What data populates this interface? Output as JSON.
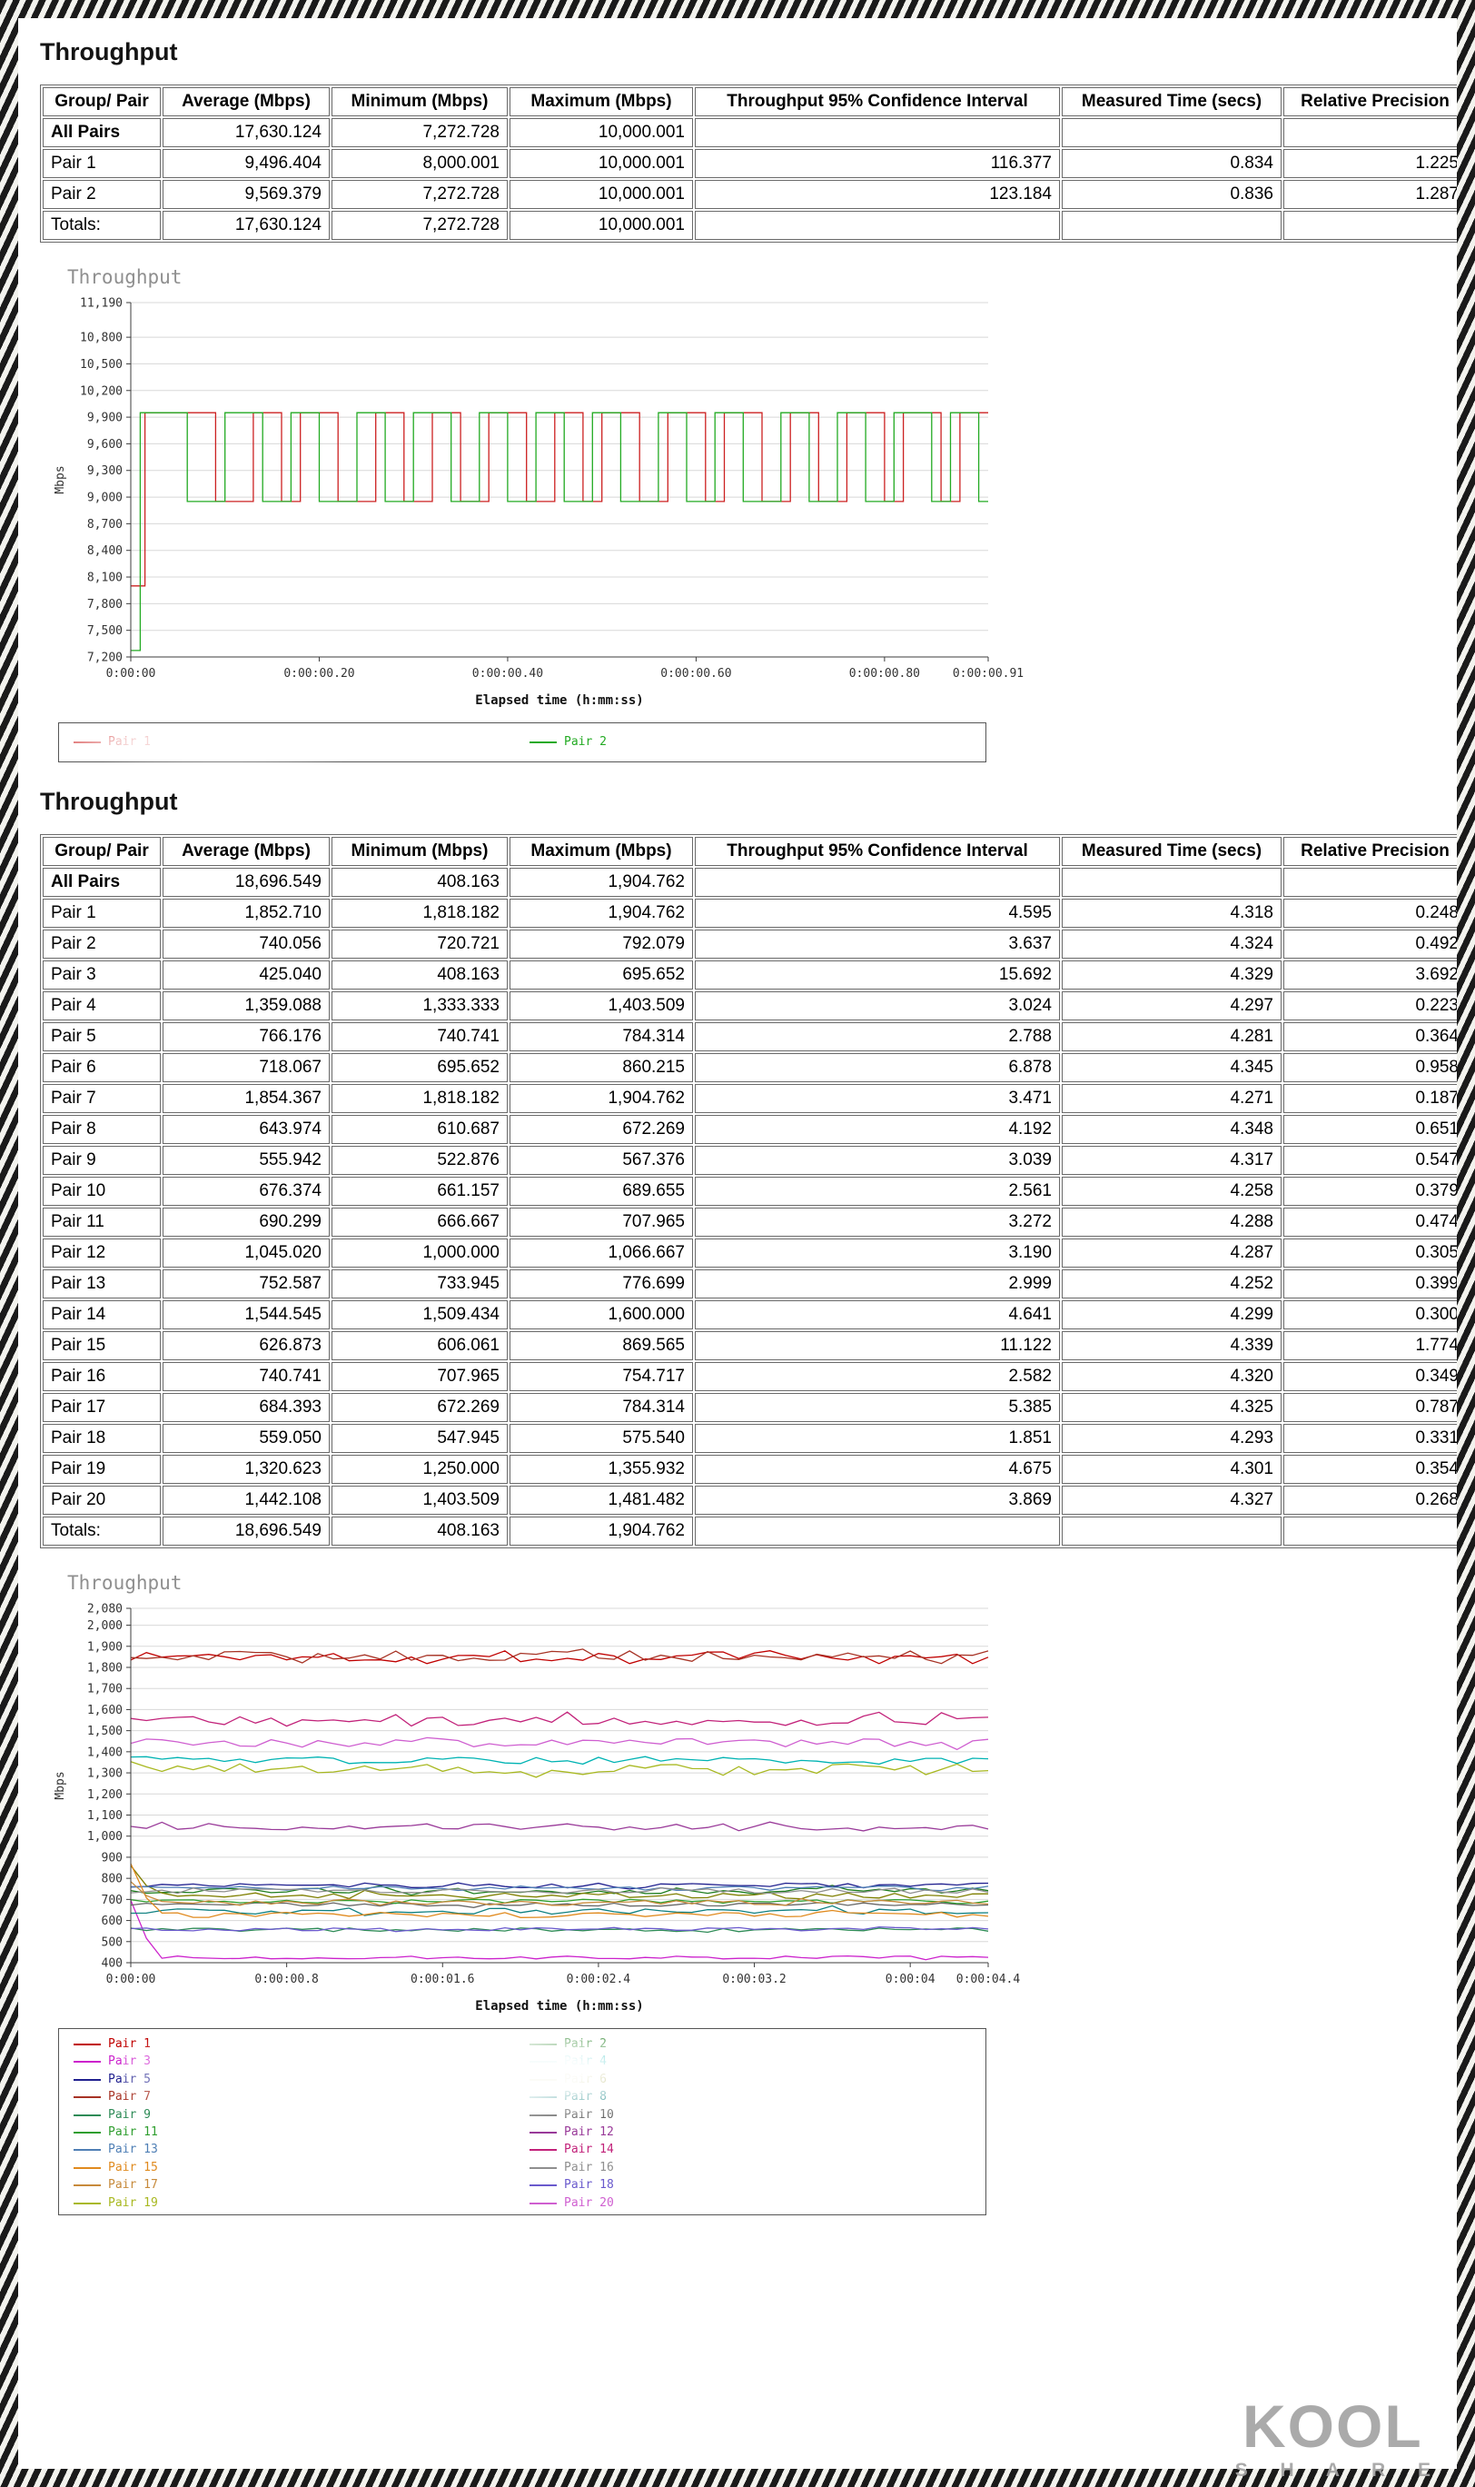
{
  "sections": {
    "title1": "Throughput",
    "title2": "Throughput"
  },
  "watermark": {
    "line1": "KOOL",
    "line2": "S H A R E"
  },
  "tables": {
    "table1": {
      "headers": [
        "Group/ Pair",
        "Average (Mbps)",
        "Minimum (Mbps)",
        "Maximum (Mbps)",
        "Throughput 95% Confidence Interval",
        "Measured Time (secs)",
        "Relative Precision"
      ],
      "rows": [
        {
          "label": "All Pairs",
          "bold": true,
          "cells": [
            "17,630.124",
            "7,272.728",
            "10,000.001",
            "",
            "",
            ""
          ]
        },
        {
          "label": "Pair 1",
          "bold": false,
          "cells": [
            "9,496.404",
            "8,000.001",
            "10,000.001",
            "116.377",
            "0.834",
            "1.225"
          ]
        },
        {
          "label": "Pair 2",
          "bold": false,
          "cells": [
            "9,569.379",
            "7,272.728",
            "10,000.001",
            "123.184",
            "0.836",
            "1.287"
          ]
        },
        {
          "label": "Totals:",
          "bold": false,
          "cells": [
            "17,630.124",
            "7,272.728",
            "10,000.001",
            "",
            "",
            ""
          ]
        }
      ]
    },
    "table2": {
      "headers": [
        "Group/ Pair",
        "Average (Mbps)",
        "Minimum (Mbps)",
        "Maximum (Mbps)",
        "Throughput 95% Confidence Interval",
        "Measured Time (secs)",
        "Relative Precision"
      ],
      "rows": [
        {
          "label": "All Pairs",
          "bold": true,
          "cells": [
            "18,696.549",
            "408.163",
            "1,904.762",
            "",
            "",
            ""
          ]
        },
        {
          "label": "Pair 1",
          "bold": false,
          "cells": [
            "1,852.710",
            "1,818.182",
            "1,904.762",
            "4.595",
            "4.318",
            "0.248"
          ]
        },
        {
          "label": "Pair 2",
          "bold": false,
          "cells": [
            "740.056",
            "720.721",
            "792.079",
            "3.637",
            "4.324",
            "0.492"
          ]
        },
        {
          "label": "Pair 3",
          "bold": false,
          "cells": [
            "425.040",
            "408.163",
            "695.652",
            "15.692",
            "4.329",
            "3.692"
          ]
        },
        {
          "label": "Pair 4",
          "bold": false,
          "cells": [
            "1,359.088",
            "1,333.333",
            "1,403.509",
            "3.024",
            "4.297",
            "0.223"
          ]
        },
        {
          "label": "Pair 5",
          "bold": false,
          "cells": [
            "766.176",
            "740.741",
            "784.314",
            "2.788",
            "4.281",
            "0.364"
          ]
        },
        {
          "label": "Pair 6",
          "bold": false,
          "cells": [
            "718.067",
            "695.652",
            "860.215",
            "6.878",
            "4.345",
            "0.958"
          ]
        },
        {
          "label": "Pair 7",
          "bold": false,
          "cells": [
            "1,854.367",
            "1,818.182",
            "1,904.762",
            "3.471",
            "4.271",
            "0.187"
          ]
        },
        {
          "label": "Pair 8",
          "bold": false,
          "cells": [
            "643.974",
            "610.687",
            "672.269",
            "4.192",
            "4.348",
            "0.651"
          ]
        },
        {
          "label": "Pair 9",
          "bold": false,
          "cells": [
            "555.942",
            "522.876",
            "567.376",
            "3.039",
            "4.317",
            "0.547"
          ]
        },
        {
          "label": "Pair 10",
          "bold": false,
          "cells": [
            "676.374",
            "661.157",
            "689.655",
            "2.561",
            "4.258",
            "0.379"
          ]
        },
        {
          "label": "Pair 11",
          "bold": false,
          "cells": [
            "690.299",
            "666.667",
            "707.965",
            "3.272",
            "4.288",
            "0.474"
          ]
        },
        {
          "label": "Pair 12",
          "bold": false,
          "cells": [
            "1,045.020",
            "1,000.000",
            "1,066.667",
            "3.190",
            "4.287",
            "0.305"
          ]
        },
        {
          "label": "Pair 13",
          "bold": false,
          "cells": [
            "752.587",
            "733.945",
            "776.699",
            "2.999",
            "4.252",
            "0.399"
          ]
        },
        {
          "label": "Pair 14",
          "bold": false,
          "cells": [
            "1,544.545",
            "1,509.434",
            "1,600.000",
            "4.641",
            "4.299",
            "0.300"
          ]
        },
        {
          "label": "Pair 15",
          "bold": false,
          "cells": [
            "626.873",
            "606.061",
            "869.565",
            "11.122",
            "4.339",
            "1.774"
          ]
        },
        {
          "label": "Pair 16",
          "bold": false,
          "cells": [
            "740.741",
            "707.965",
            "754.717",
            "2.582",
            "4.320",
            "0.349"
          ]
        },
        {
          "label": "Pair 17",
          "bold": false,
          "cells": [
            "684.393",
            "672.269",
            "784.314",
            "5.385",
            "4.325",
            "0.787"
          ]
        },
        {
          "label": "Pair 18",
          "bold": false,
          "cells": [
            "559.050",
            "547.945",
            "575.540",
            "1.851",
            "4.293",
            "0.331"
          ]
        },
        {
          "label": "Pair 19",
          "bold": false,
          "cells": [
            "1,320.623",
            "1,250.000",
            "1,355.932",
            "4.675",
            "4.301",
            "0.354"
          ]
        },
        {
          "label": "Pair 20",
          "bold": false,
          "cells": [
            "1,442.108",
            "1,403.509",
            "1,481.482",
            "3.869",
            "4.327",
            "0.268"
          ]
        },
        {
          "label": "Totals:",
          "bold": false,
          "cells": [
            "18,696.549",
            "408.163",
            "1,904.762",
            "",
            "",
            ""
          ]
        }
      ]
    }
  },
  "chart_data": [
    {
      "type": "line",
      "title": "Throughput",
      "ylabel": "Mbps",
      "xlabel": "Elapsed time (h:mm:ss)",
      "xlim": [
        0,
        0.91
      ],
      "ylim": [
        7200,
        11190
      ],
      "grid": "horizontal",
      "legend_position": "bottom-box",
      "step": true,
      "yticks": [
        {
          "v": 7200,
          "label": "7,200"
        },
        {
          "v": 7500,
          "label": "7,500"
        },
        {
          "v": 7800,
          "label": "7,800"
        },
        {
          "v": 8100,
          "label": "8,100"
        },
        {
          "v": 8400,
          "label": "8,400"
        },
        {
          "v": 8700,
          "label": "8,700"
        },
        {
          "v": 9000,
          "label": "9,000"
        },
        {
          "v": 9300,
          "label": "9,300"
        },
        {
          "v": 9600,
          "label": "9,600"
        },
        {
          "v": 9900,
          "label": "9,900"
        },
        {
          "v": 10200,
          "label": "10,200"
        },
        {
          "v": 10500,
          "label": "10,500"
        },
        {
          "v": 10800,
          "label": "10,800"
        },
        {
          "v": 11190,
          "label": "11,190"
        }
      ],
      "xticks": [
        {
          "v": 0,
          "label": "0:00:00"
        },
        {
          "v": 0.2,
          "label": "0:00:00.20"
        },
        {
          "v": 0.4,
          "label": "0:00:00.40"
        },
        {
          "v": 0.6,
          "label": "0:00:00.60"
        },
        {
          "v": 0.8,
          "label": "0:00:00.80"
        },
        {
          "v": 0.91,
          "label": "0:00:00.91"
        }
      ],
      "series": [
        {
          "name": "Pair 1",
          "color": "#cc2020",
          "points": [
            [
              0,
              8000
            ],
            [
              0.015,
              9950
            ],
            [
              0.09,
              8950
            ],
            [
              0.13,
              9950
            ],
            [
              0.16,
              8950
            ],
            [
              0.18,
              9950
            ],
            [
              0.22,
              8950
            ],
            [
              0.26,
              9950
            ],
            [
              0.29,
              8950
            ],
            [
              0.32,
              9950
            ],
            [
              0.35,
              8950
            ],
            [
              0.38,
              9950
            ],
            [
              0.42,
              8950
            ],
            [
              0.45,
              9950
            ],
            [
              0.48,
              8950
            ],
            [
              0.5,
              9950
            ],
            [
              0.54,
              8950
            ],
            [
              0.57,
              9950
            ],
            [
              0.61,
              8950
            ],
            [
              0.63,
              9950
            ],
            [
              0.67,
              8950
            ],
            [
              0.7,
              9950
            ],
            [
              0.73,
              8950
            ],
            [
              0.76,
              9950
            ],
            [
              0.8,
              8950
            ],
            [
              0.82,
              9950
            ],
            [
              0.86,
              8950
            ],
            [
              0.88,
              9950
            ],
            [
              0.91,
              9950
            ]
          ]
        },
        {
          "name": "Pair 2",
          "color": "#22aa22",
          "points": [
            [
              0,
              7272.7
            ],
            [
              0.01,
              9950
            ],
            [
              0.06,
              8950
            ],
            [
              0.1,
              9950
            ],
            [
              0.14,
              8950
            ],
            [
              0.17,
              9950
            ],
            [
              0.2,
              8950
            ],
            [
              0.24,
              9950
            ],
            [
              0.27,
              8950
            ],
            [
              0.3,
              9950
            ],
            [
              0.34,
              8950
            ],
            [
              0.37,
              9950
            ],
            [
              0.4,
              8950
            ],
            [
              0.43,
              9950
            ],
            [
              0.46,
              8950
            ],
            [
              0.49,
              9950
            ],
            [
              0.52,
              8950
            ],
            [
              0.56,
              9950
            ],
            [
              0.59,
              8950
            ],
            [
              0.62,
              9950
            ],
            [
              0.65,
              8950
            ],
            [
              0.69,
              9950
            ],
            [
              0.72,
              8950
            ],
            [
              0.75,
              9950
            ],
            [
              0.78,
              8950
            ],
            [
              0.81,
              9950
            ],
            [
              0.85,
              8950
            ],
            [
              0.87,
              9950
            ],
            [
              0.9,
              8950
            ],
            [
              0.91,
              8950
            ]
          ]
        }
      ]
    },
    {
      "type": "line",
      "title": "Throughput",
      "ylabel": "Mbps",
      "xlabel": "Elapsed time (h:mm:ss)",
      "xlim": [
        0,
        4.4
      ],
      "ylim": [
        400,
        2080
      ],
      "grid": "horizontal",
      "legend_position": "bottom-box-2col",
      "step": false,
      "yticks": [
        {
          "v": 400,
          "label": "400"
        },
        {
          "v": 500,
          "label": "500"
        },
        {
          "v": 600,
          "label": "600"
        },
        {
          "v": 700,
          "label": "700"
        },
        {
          "v": 800,
          "label": "800"
        },
        {
          "v": 900,
          "label": "900"
        },
        {
          "v": 1000,
          "label": "1,000"
        },
        {
          "v": 1100,
          "label": "1,100"
        },
        {
          "v": 1200,
          "label": "1,200"
        },
        {
          "v": 1300,
          "label": "1,300"
        },
        {
          "v": 1400,
          "label": "1,400"
        },
        {
          "v": 1500,
          "label": "1,500"
        },
        {
          "v": 1600,
          "label": "1,600"
        },
        {
          "v": 1700,
          "label": "1,700"
        },
        {
          "v": 1800,
          "label": "1,800"
        },
        {
          "v": 1900,
          "label": "1,900"
        },
        {
          "v": 2000,
          "label": "2,000"
        },
        {
          "v": 2080,
          "label": "2,080"
        }
      ],
      "xticks": [
        {
          "v": 0,
          "label": "0:00:00"
        },
        {
          "v": 0.8,
          "label": "0:00:00.8"
        },
        {
          "v": 1.6,
          "label": "0:00:01.6"
        },
        {
          "v": 2.4,
          "label": "0:00:02.4"
        },
        {
          "v": 3.2,
          "label": "0:00:03.2"
        },
        {
          "v": 4,
          "label": "0:00:04"
        },
        {
          "v": 4.4,
          "label": "0:00:04.4"
        }
      ],
      "series": [
        {
          "name": "Pair 1",
          "color": "#c00000",
          "avg": 1852.71,
          "min": 1818.182,
          "max": 1904.762,
          "amp": 28
        },
        {
          "name": "Pair 2",
          "color": "#1e7d1e",
          "avg": 740.056,
          "min": 720.721,
          "max": 792.079,
          "amp": 14
        },
        {
          "name": "Pair 3",
          "color": "#cc22cc",
          "avg": 425.04,
          "min": 408.163,
          "max": 695.652,
          "amp": 7,
          "start": 695.652
        },
        {
          "name": "Pair 4",
          "color": "#00b3b3",
          "avg": 1359.088,
          "min": 1333.333,
          "max": 1403.509,
          "amp": 18
        },
        {
          "name": "Pair 5",
          "color": "#20208f",
          "avg": 766.176,
          "min": 740.741,
          "max": 784.314,
          "amp": 12
        },
        {
          "name": "Pair 6",
          "color": "#7f7f00",
          "avg": 718.067,
          "min": 695.652,
          "max": 860.215,
          "amp": 14,
          "start": 860.215
        },
        {
          "name": "Pair 7",
          "color": "#a73325",
          "avg": 1854.367,
          "min": 1818.182,
          "max": 1904.762,
          "amp": 26
        },
        {
          "name": "Pair 8",
          "color": "#0e8080",
          "avg": 643.974,
          "min": 610.687,
          "max": 672.269,
          "amp": 14
        },
        {
          "name": "Pair 9",
          "color": "#2e8b57",
          "avg": 555.942,
          "min": 522.876,
          "max": 567.376,
          "amp": 9
        },
        {
          "name": "Pair 10",
          "color": "#676767",
          "avg": 676.374,
          "min": 661.157,
          "max": 689.655,
          "amp": 8
        },
        {
          "name": "Pair 11",
          "color": "#2f9e2f",
          "avg": 690.299,
          "min": 666.667,
          "max": 707.965,
          "amp": 10
        },
        {
          "name": "Pair 12",
          "color": "#993a99",
          "avg": 1045.02,
          "min": 1000.0,
          "max": 1066.667,
          "amp": 16
        },
        {
          "name": "Pair 13",
          "color": "#4f7fb5",
          "avg": 752.587,
          "min": 733.945,
          "max": 776.699,
          "amp": 11
        },
        {
          "name": "Pair 14",
          "color": "#c2227a",
          "avg": 1544.545,
          "min": 1509.434,
          "max": 1600.0,
          "amp": 24
        },
        {
          "name": "Pair 15",
          "color": "#e08a1e",
          "avg": 626.873,
          "min": 606.061,
          "max": 869.565,
          "amp": 12,
          "start": 869.565
        },
        {
          "name": "Pair 16",
          "color": "#8f8f8f",
          "avg": 740.741,
          "min": 707.965,
          "max": 754.717,
          "amp": 12
        },
        {
          "name": "Pair 17",
          "color": "#c78a3b",
          "avg": 684.393,
          "min": 672.269,
          "max": 784.314,
          "amp": 13,
          "start": 784.314
        },
        {
          "name": "Pair 18",
          "color": "#6a5acd",
          "avg": 559.05,
          "min": 547.945,
          "max": 575.54,
          "amp": 8
        },
        {
          "name": "Pair 19",
          "color": "#a8b820",
          "avg": 1320.623,
          "min": 1250.0,
          "max": 1355.932,
          "amp": 24
        },
        {
          "name": "Pair 20",
          "color": "#cf5fd0",
          "avg": 1442.108,
          "min": 1403.509,
          "max": 1481.482,
          "amp": 20
        }
      ]
    }
  ]
}
